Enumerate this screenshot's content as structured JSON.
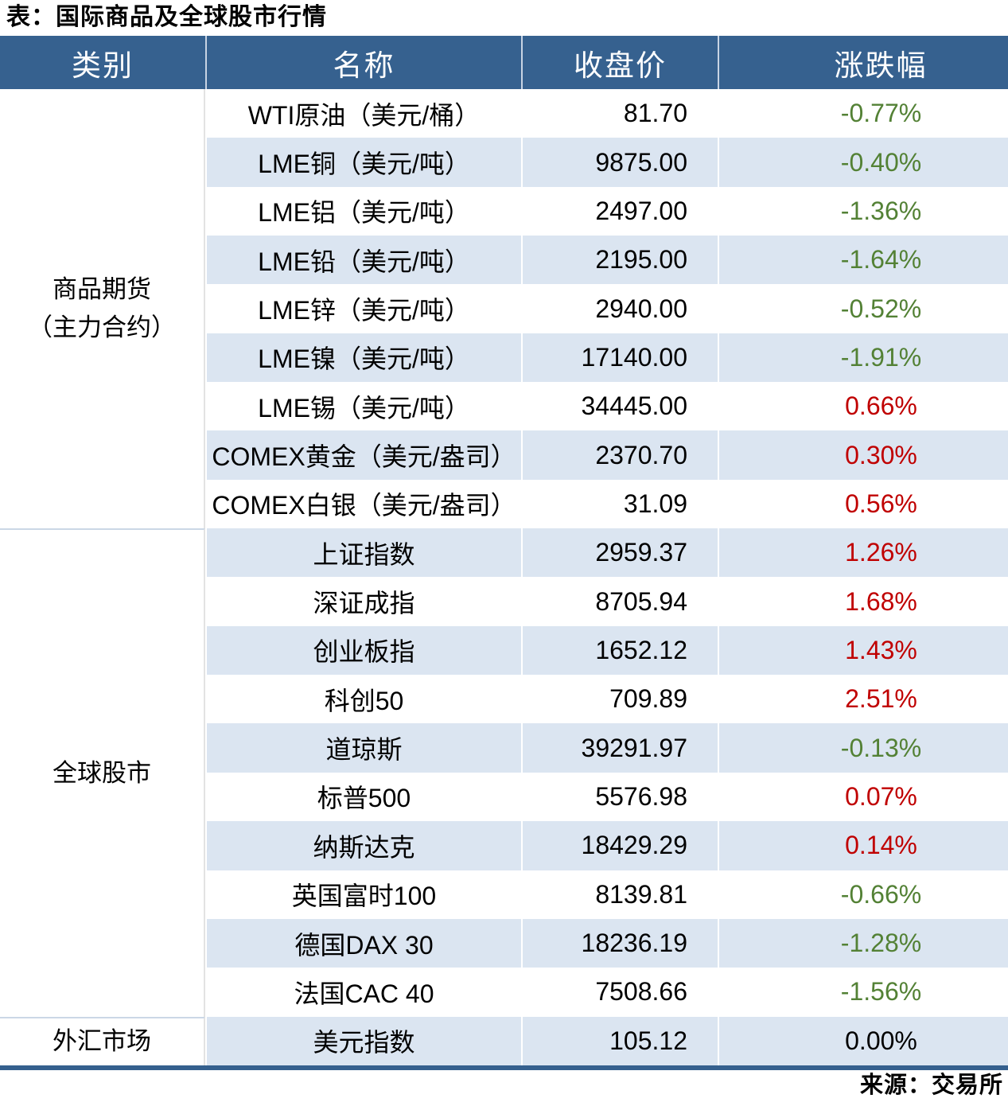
{
  "title": "表：国际商品及全球股市行情",
  "source": "来源：交易所",
  "theme": {
    "header_bg": "#36618F",
    "stripe_bg": "#DBE5F1",
    "up_color": "#C00000",
    "down_color": "#538135",
    "flat_color": "#000000",
    "rule_color": "#35608E"
  },
  "chart_data": {
    "type": "table",
    "columns": [
      "类别",
      "名称",
      "收盘价",
      "涨跌幅"
    ],
    "sections": [
      {
        "category_lines": [
          "商品期货",
          "（主力合约）"
        ],
        "rows": [
          {
            "name": "WTI原油（美元/桶）",
            "close": "81.70",
            "change": "-0.77%",
            "direction": "down"
          },
          {
            "name": "LME铜（美元/吨）",
            "close": "9875.00",
            "change": "-0.40%",
            "direction": "down"
          },
          {
            "name": "LME铝（美元/吨）",
            "close": "2497.00",
            "change": "-1.36%",
            "direction": "down"
          },
          {
            "name": "LME铅（美元/吨）",
            "close": "2195.00",
            "change": "-1.64%",
            "direction": "down"
          },
          {
            "name": "LME锌（美元/吨）",
            "close": "2940.00",
            "change": "-0.52%",
            "direction": "down"
          },
          {
            "name": "LME镍（美元/吨）",
            "close": "17140.00",
            "change": "-1.91%",
            "direction": "down"
          },
          {
            "name": "LME锡（美元/吨）",
            "close": "34445.00",
            "change": "0.66%",
            "direction": "up"
          },
          {
            "name": "COMEX黄金（美元/盎司）",
            "close": "2370.70",
            "change": "0.30%",
            "direction": "up"
          },
          {
            "name": "COMEX白银（美元/盎司）",
            "close": "31.09",
            "change": "0.56%",
            "direction": "up"
          }
        ]
      },
      {
        "category_lines": [
          "全球股市"
        ],
        "rows": [
          {
            "name": "上证指数",
            "close": "2959.37",
            "change": "1.26%",
            "direction": "up"
          },
          {
            "name": "深证成指",
            "close": "8705.94",
            "change": "1.68%",
            "direction": "up"
          },
          {
            "name": "创业板指",
            "close": "1652.12",
            "change": "1.43%",
            "direction": "up"
          },
          {
            "name": "科创50",
            "close": "709.89",
            "change": "2.51%",
            "direction": "up"
          },
          {
            "name": "道琼斯",
            "close": "39291.97",
            "change": "-0.13%",
            "direction": "down"
          },
          {
            "name": "标普500",
            "close": "5576.98",
            "change": "0.07%",
            "direction": "up"
          },
          {
            "name": "纳斯达克",
            "close": "18429.29",
            "change": "0.14%",
            "direction": "up"
          },
          {
            "name": "英国富时100",
            "close": "8139.81",
            "change": "-0.66%",
            "direction": "down"
          },
          {
            "name": "德国DAX 30",
            "close": "18236.19",
            "change": "-1.28%",
            "direction": "down"
          },
          {
            "name": "法国CAC 40",
            "close": "7508.66",
            "change": "-1.56%",
            "direction": "down"
          }
        ]
      },
      {
        "category_lines": [
          "外汇市场"
        ],
        "rows": [
          {
            "name": "美元指数",
            "close": "105.12",
            "change": "0.00%",
            "direction": "flat"
          }
        ]
      }
    ]
  }
}
